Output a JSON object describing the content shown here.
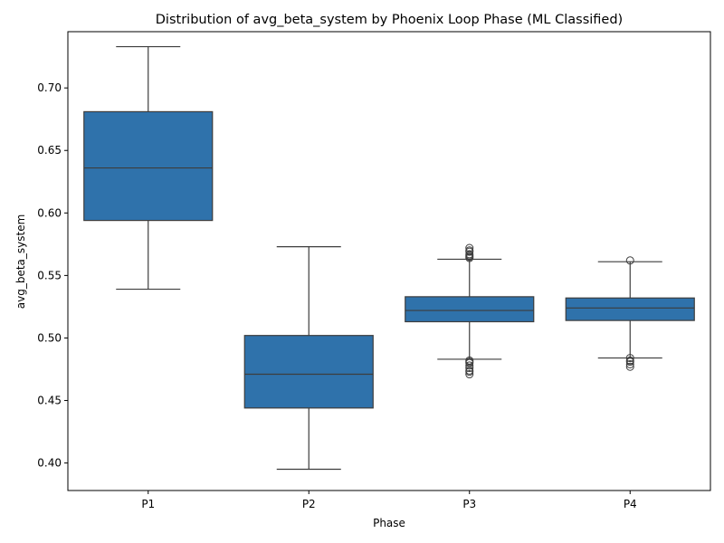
{
  "chart_data": {
    "type": "box",
    "title": "Distribution of avg_beta_system by Phoenix Loop Phase (ML Classified)",
    "xlabel": "Phase",
    "ylabel": "avg_beta_system",
    "categories": [
      "P1",
      "P2",
      "P3",
      "P4"
    ],
    "ylim": [
      0.378,
      0.745
    ],
    "yticks": [
      0.4,
      0.45,
      0.5,
      0.55,
      0.6,
      0.65,
      0.7
    ],
    "ytick_labels": [
      "0.40",
      "0.45",
      "0.50",
      "0.55",
      "0.60",
      "0.65",
      "0.70"
    ],
    "grid": false,
    "legend": "none",
    "box_color": "#2f72ab",
    "line_color": "#3d3d3d",
    "boxes": [
      {
        "category": "P1",
        "whislo": 0.539,
        "q1": 0.594,
        "med": 0.636,
        "q3": 0.681,
        "whishi": 0.733,
        "fliers": []
      },
      {
        "category": "P2",
        "whislo": 0.395,
        "q1": 0.444,
        "med": 0.471,
        "q3": 0.502,
        "whishi": 0.573,
        "fliers": []
      },
      {
        "category": "P3",
        "whislo": 0.483,
        "q1": 0.513,
        "med": 0.522,
        "q3": 0.533,
        "whishi": 0.563,
        "fliers": [
          0.564,
          0.565,
          0.566,
          0.567,
          0.569,
          0.57,
          0.572,
          0.471,
          0.473,
          0.474,
          0.476,
          0.478,
          0.48,
          0.481,
          0.482
        ]
      },
      {
        "category": "P4",
        "whislo": 0.484,
        "q1": 0.514,
        "med": 0.524,
        "q3": 0.532,
        "whishi": 0.561,
        "fliers": [
          0.562,
          0.477,
          0.479,
          0.481,
          0.482,
          0.484
        ]
      }
    ]
  }
}
